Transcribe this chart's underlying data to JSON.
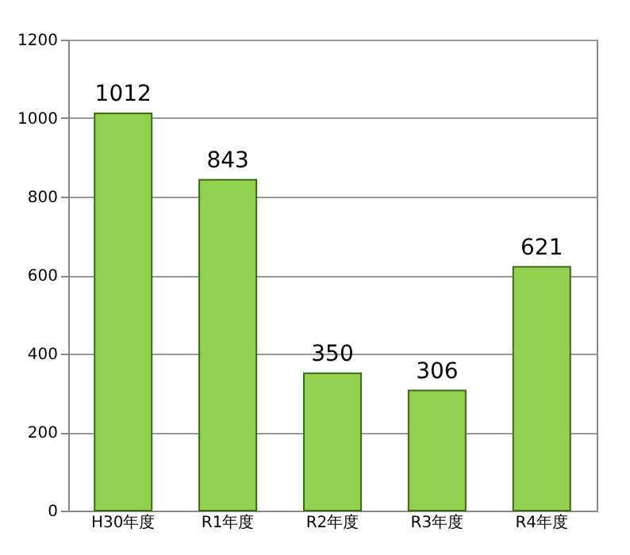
{
  "chart_data": {
    "type": "bar",
    "categories": [
      "H30年度",
      "R1年度",
      "R2年度",
      "R3年度",
      "R4年度"
    ],
    "values": [
      1012,
      843,
      350,
      306,
      621
    ],
    "color": "#92d050",
    "ylim": [
      0,
      1200
    ],
    "yticks": [
      0,
      200,
      400,
      600,
      800,
      1000,
      1200
    ],
    "grid": "y",
    "data_labels": true
  }
}
